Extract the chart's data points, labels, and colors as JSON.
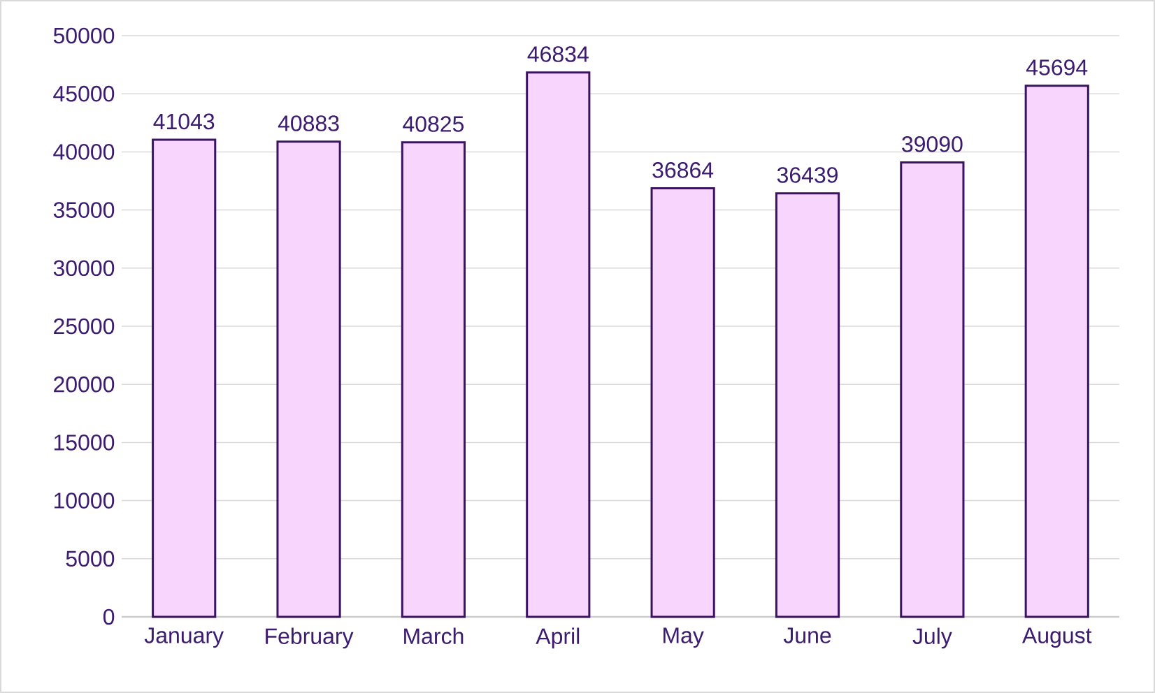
{
  "chart_data": {
    "type": "bar",
    "categories": [
      "January",
      "February",
      "March",
      "April",
      "May",
      "June",
      "July",
      "August"
    ],
    "values": [
      41043,
      40883,
      40825,
      46834,
      36864,
      36439,
      39090,
      45694
    ],
    "color": "#f7d5fd",
    "ylim": [
      0,
      50000
    ],
    "yticks": [
      0,
      5000,
      10000,
      15000,
      20000,
      25000,
      30000,
      35000,
      40000,
      45000,
      50000
    ],
    "grid": "y",
    "data_labels": true
  }
}
